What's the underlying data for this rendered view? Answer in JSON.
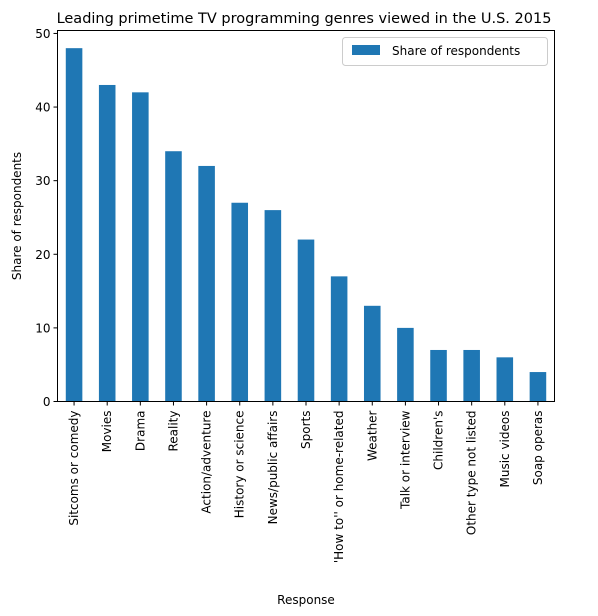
{
  "chart_data": {
    "type": "bar",
    "title": "Leading primetime TV programming genres viewed in the U.S. 2015",
    "xlabel": "Response",
    "ylabel": "Share of respondents",
    "categories": [
      "Sitcoms or comedy",
      "Movies",
      "Drama",
      "Reality",
      "Action/adventure",
      "History or science",
      "News/public affairs",
      "Sports",
      "'How to'' or home-related",
      "Weather",
      "Talk or interview",
      "Children's",
      "Other type not listed",
      "Music videos",
      "Soap operas"
    ],
    "series": [
      {
        "name": "Share of respondents",
        "values": [
          48,
          43,
          42,
          34,
          32,
          27,
          26,
          22,
          17,
          13,
          10,
          7,
          7,
          6,
          4
        ],
        "color": "#1f77b4"
      }
    ],
    "ylim": [
      0,
      50.4
    ],
    "yticks": [
      0,
      10,
      20,
      30,
      40,
      50
    ],
    "legend_position": "top-right",
    "grid": false
  }
}
